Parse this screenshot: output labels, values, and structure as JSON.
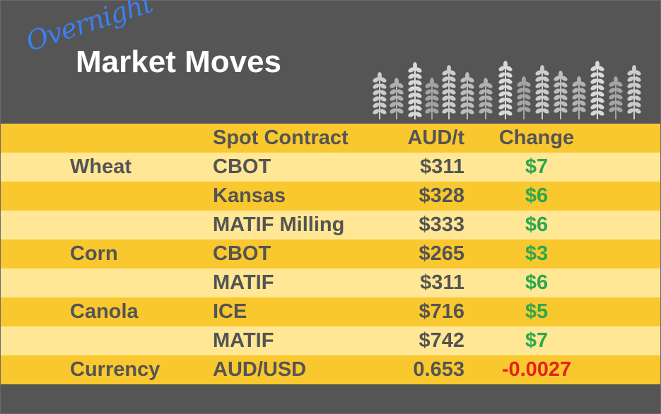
{
  "header": {
    "subtitle": "Overnight",
    "title": "Market Moves"
  },
  "colors": {
    "header_bg": "#555555",
    "row_dark": "#f9c82f",
    "row_light": "#ffe795",
    "text": "#545454",
    "positive": "#2ca84d",
    "negative": "#e2231a",
    "subtitle": "#3d7ef0"
  },
  "table": {
    "columns": [
      "",
      "Spot Contract",
      "AUD/t",
      "Change"
    ],
    "rows": [
      {
        "category": "Wheat",
        "contract": "CBOT",
        "aud": "$311",
        "change": "$7",
        "direction": "up"
      },
      {
        "category": "",
        "contract": "Kansas",
        "aud": "$328",
        "change": "$6",
        "direction": "up"
      },
      {
        "category": "",
        "contract": "MATIF Milling",
        "aud": "$333",
        "change": "$6",
        "direction": "up"
      },
      {
        "category": "Corn",
        "contract": "CBOT",
        "aud": "$265",
        "change": "$3",
        "direction": "up"
      },
      {
        "category": "",
        "contract": "MATIF",
        "aud": "$311",
        "change": "$6",
        "direction": "up"
      },
      {
        "category": "Canola",
        "contract": "ICE",
        "aud": "$716",
        "change": "$5",
        "direction": "up"
      },
      {
        "category": "",
        "contract": "MATIF",
        "aud": "$742",
        "change": "$7",
        "direction": "up"
      },
      {
        "category": "Currency",
        "contract": "AUD/USD",
        "aud": "0.653",
        "change": "-0.0027",
        "direction": "down"
      }
    ]
  },
  "decoration": {
    "icon": "wheat-stalks-icon"
  }
}
